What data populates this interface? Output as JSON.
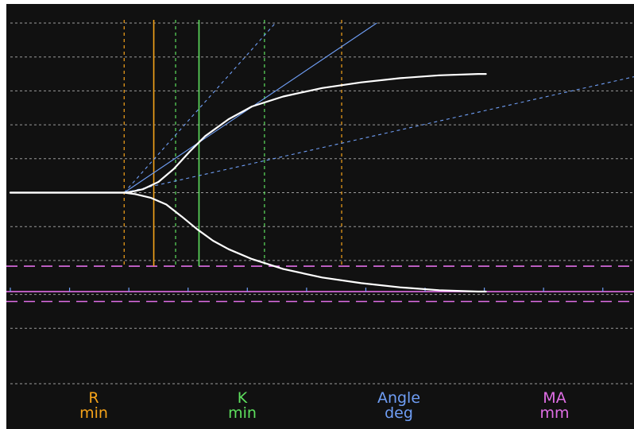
{
  "chart_data": {
    "type": "line",
    "title": "",
    "grid": true,
    "background": "#111111",
    "colors": {
      "grid": "#9a9a9a",
      "trace": "#ffffff",
      "r": "#f5a31a",
      "k": "#5ee05e",
      "angle": "#6f9ef5",
      "ma": "#e06ee6"
    },
    "legend": [
      {
        "key": "r",
        "name": "R",
        "unit": "min",
        "color": "#f5a31a"
      },
      {
        "key": "k",
        "name": "K",
        "unit": "min",
        "color": "#5ee05e"
      },
      {
        "key": "angle",
        "name": "Angle",
        "unit": "deg",
        "color": "#6f9ef5"
      },
      {
        "key": "ma",
        "name": "MA",
        "unit": "mm",
        "color": "#e06ee6"
      }
    ],
    "x_range": [
      0,
      80
    ],
    "y_range": [
      -60,
      60
    ],
    "trace_upper": [
      [
        0,
        0
      ],
      [
        14.6,
        0
      ],
      [
        15.5,
        0.3
      ],
      [
        17,
        1.2
      ],
      [
        19,
        3.8
      ],
      [
        21,
        8.5
      ],
      [
        23,
        14.5
      ],
      [
        25,
        20
      ],
      [
        28,
        26
      ],
      [
        31,
        30.5
      ],
      [
        35,
        34
      ],
      [
        40,
        37
      ],
      [
        45,
        39
      ],
      [
        50,
        40.5
      ],
      [
        55,
        41.5
      ],
      [
        60,
        42
      ],
      [
        61,
        42
      ]
    ],
    "trace_lower": [
      [
        0,
        0
      ],
      [
        14.6,
        0
      ],
      [
        16,
        -0.5
      ],
      [
        18,
        -1.8
      ],
      [
        20,
        -4.2
      ],
      [
        22,
        -8.5
      ],
      [
        24,
        -13
      ],
      [
        26,
        -17
      ],
      [
        28,
        -20
      ],
      [
        31,
        -23.5
      ],
      [
        35,
        -27
      ],
      [
        40,
        -30
      ],
      [
        45,
        -32
      ],
      [
        50,
        -33.5
      ],
      [
        55,
        -34.5
      ],
      [
        60,
        -35
      ],
      [
        61,
        -35
      ]
    ],
    "r_markers": [
      {
        "x": 14.6,
        "style": "dashed",
        "ymin": -26
      },
      {
        "x": 18.4,
        "style": "solid",
        "ymin": -26
      },
      {
        "x": 42.5,
        "style": "dashed",
        "ymin": -26
      }
    ],
    "k_markers": [
      {
        "x": 21.2,
        "style": "dashed",
        "ymin": -26
      },
      {
        "x": 24.2,
        "style": "solid",
        "ymin": -26
      },
      {
        "x": 32.6,
        "style": "dashed",
        "ymin": -26
      }
    ],
    "angle_lines": [
      {
        "from": [
          14.6,
          0
        ],
        "to": [
          47,
          60
        ],
        "style": "solid"
      },
      {
        "from": [
          14.6,
          0
        ],
        "to": [
          34,
          60
        ],
        "style": "dashed"
      },
      {
        "from": [
          14.6,
          0
        ],
        "to": [
          80,
          41
        ],
        "style": "dashed"
      }
    ],
    "ma_lines": [
      {
        "y": -26,
        "style": "dashed"
      },
      {
        "y": -35,
        "style": "solid"
      },
      {
        "y": -38.5,
        "style": "dashed"
      }
    ],
    "x_ticks": [
      0,
      7.6,
      15.2,
      22.8,
      30.4,
      38,
      45.6,
      53.2,
      60.8,
      68.4,
      76
    ],
    "y_gridlines": [
      -48,
      -36,
      -24,
      -12,
      0,
      12,
      24,
      36,
      48,
      60
    ]
  }
}
